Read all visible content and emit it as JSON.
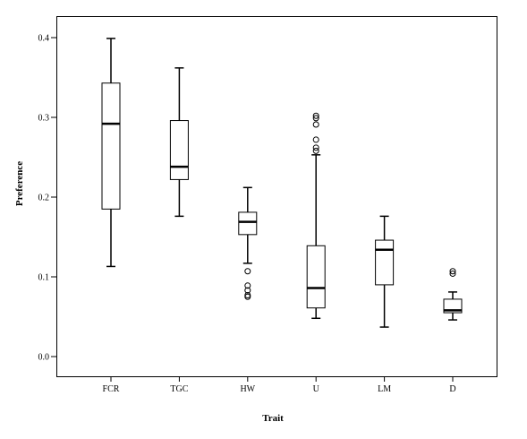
{
  "chart_data": {
    "type": "boxplot",
    "title": "",
    "xlabel": "Trait",
    "ylabel": "Preference",
    "ylim": [
      0.0,
      0.4
    ],
    "yticks": [
      0.0,
      0.1,
      0.2,
      0.3,
      0.4
    ],
    "yticklabels": [
      "0.0",
      "0.1",
      "0.2",
      "0.3",
      "0.4"
    ],
    "grid": false,
    "legend": "none",
    "categories": [
      "FCR",
      "TGC",
      "HW",
      "U",
      "LM",
      "D"
    ],
    "boxes": [
      {
        "category": "FCR",
        "whisker_low": 0.113,
        "q1": 0.185,
        "median": 0.292,
        "q3": 0.343,
        "whisker_high": 0.399,
        "outliers": []
      },
      {
        "category": "TGC",
        "whisker_low": 0.176,
        "q1": 0.222,
        "median": 0.238,
        "q3": 0.296,
        "whisker_high": 0.362,
        "outliers": []
      },
      {
        "category": "HW",
        "whisker_low": 0.117,
        "q1": 0.153,
        "median": 0.169,
        "q3": 0.181,
        "whisker_high": 0.212,
        "outliers": [
          0.107,
          0.089,
          0.083,
          0.077,
          0.075
        ]
      },
      {
        "category": "U",
        "whisker_low": 0.048,
        "q1": 0.061,
        "median": 0.086,
        "q3": 0.139,
        "whisker_high": 0.253,
        "outliers": [
          0.302,
          0.299,
          0.291,
          0.272,
          0.262,
          0.258
        ]
      },
      {
        "category": "LM",
        "whisker_low": 0.037,
        "q1": 0.09,
        "median": 0.134,
        "q3": 0.146,
        "whisker_high": 0.176,
        "outliers": []
      },
      {
        "category": "D",
        "whisker_low": 0.046,
        "q1": 0.055,
        "median": 0.058,
        "q3": 0.072,
        "whisker_high": 0.081,
        "outliers": [
          0.107,
          0.104
        ]
      }
    ]
  }
}
